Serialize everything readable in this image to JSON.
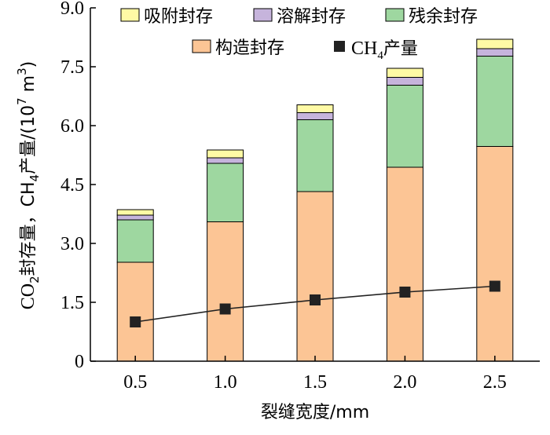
{
  "chart_data": {
    "type": "bar",
    "stacked": true,
    "categories": [
      "0.5",
      "1.0",
      "1.5",
      "2.0",
      "2.5"
    ],
    "series": [
      {
        "name": "构造封存",
        "color": "#fcc595",
        "values": [
          2.52,
          3.55,
          4.32,
          4.94,
          5.47
        ]
      },
      {
        "name": "残余封存",
        "color": "#9ed7a0",
        "values": [
          1.08,
          1.49,
          1.83,
          2.09,
          2.3
        ]
      },
      {
        "name": "溶解封存",
        "color": "#c6b4dc",
        "values": [
          0.12,
          0.14,
          0.18,
          0.2,
          0.19
        ]
      },
      {
        "name": "吸附封存",
        "color": "#fffaa5",
        "values": [
          0.14,
          0.2,
          0.2,
          0.23,
          0.24
        ]
      }
    ],
    "line": {
      "values": [
        1.0,
        1.33,
        1.56,
        1.76,
        1.91
      ],
      "marker": "square",
      "color": "#222222"
    },
    "xlabel": "裂缝宽度/mm",
    "ylim": [
      0,
      9
    ],
    "yticks": [
      "0",
      "1.5",
      "3.0",
      "4.5",
      "6.0",
      "7.5",
      "9.0"
    ],
    "ytick_values": [
      0,
      1.5,
      3.0,
      4.5,
      6.0,
      7.5,
      9.0
    ],
    "ylabel": {
      "co": "CO",
      "co_sub": "2",
      "mid": "封存量，CH",
      "ch_sub": "4",
      "unit": "产量/(10",
      "exp": "7",
      "m": " m",
      "m_exp": "3",
      "close": ")"
    },
    "legend": {
      "adsorb": "吸附封存",
      "dissolve": "溶解封存",
      "residual": "残余封存",
      "structural": "构造封存",
      "ch4_main": "CH",
      "ch4_sub": "4",
      "ch4_rest": "产量"
    }
  }
}
